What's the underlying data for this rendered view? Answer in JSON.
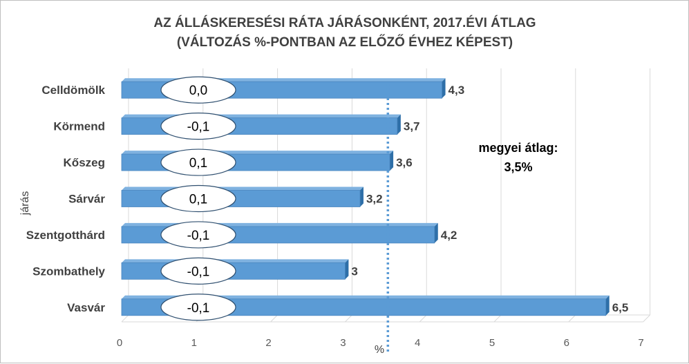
{
  "chart_data": {
    "type": "bar",
    "orientation": "horizontal",
    "title": "AZ ÁLLÁSKERESÉSI RÁTA JÁRÁSONKÉNT, 2017.ÉVI ÁTLAG",
    "subtitle": "(VÁLTOZÁS %-PONTBAN AZ ELŐZŐ ÉVHEZ KÉPEST)",
    "xlabel": "%",
    "ylabel": "járás",
    "xlim": [
      0,
      7
    ],
    "xticks": [
      "0",
      "1",
      "2",
      "3",
      "4",
      "5",
      "6",
      "7"
    ],
    "categories": [
      "Celldömölk",
      "Körmend",
      "Kőszeg",
      "Sárvár",
      "Szentgotthárd",
      "Szombathely",
      "Vasvár"
    ],
    "values": [
      4.3,
      3.7,
      3.6,
      3.2,
      4.2,
      3.0,
      6.5
    ],
    "value_labels": [
      "4,3",
      "3,7",
      "3,6",
      "3,2",
      "4,2",
      "3",
      "6,5"
    ],
    "change_labels": [
      "0,0",
      "-0,1",
      "0,1",
      "0,1",
      "-0,1",
      "-0,1",
      "-0,1"
    ],
    "reference_line": {
      "value": 3.5,
      "label_line1": "megyei átlag:",
      "label_line2": "3,5%"
    },
    "grid": true,
    "colors": {
      "bar": "#5b9bd5",
      "bar_top": "#7fb2e0",
      "bar_side": "#2e6fa8",
      "reference": "#5b9bd5",
      "grid": "#d9d9d9"
    }
  }
}
